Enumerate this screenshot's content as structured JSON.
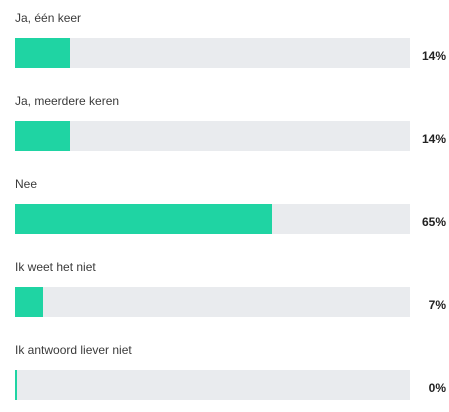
{
  "accent_color": "#1fd4a3",
  "track_color": "#e9ebee",
  "options": [
    {
      "label": "Ja, één keer",
      "percent_label": "14%",
      "fraction": 0.14
    },
    {
      "label": "Ja, meerdere keren",
      "percent_label": "14%",
      "fraction": 0.14
    },
    {
      "label": "Nee",
      "percent_label": "65%",
      "fraction": 0.65
    },
    {
      "label": "Ik weet het niet",
      "percent_label": "7%",
      "fraction": 0.07
    },
    {
      "label": "Ik antwoord liever niet",
      "percent_label": "0%",
      "fraction": 0.0
    }
  ]
}
